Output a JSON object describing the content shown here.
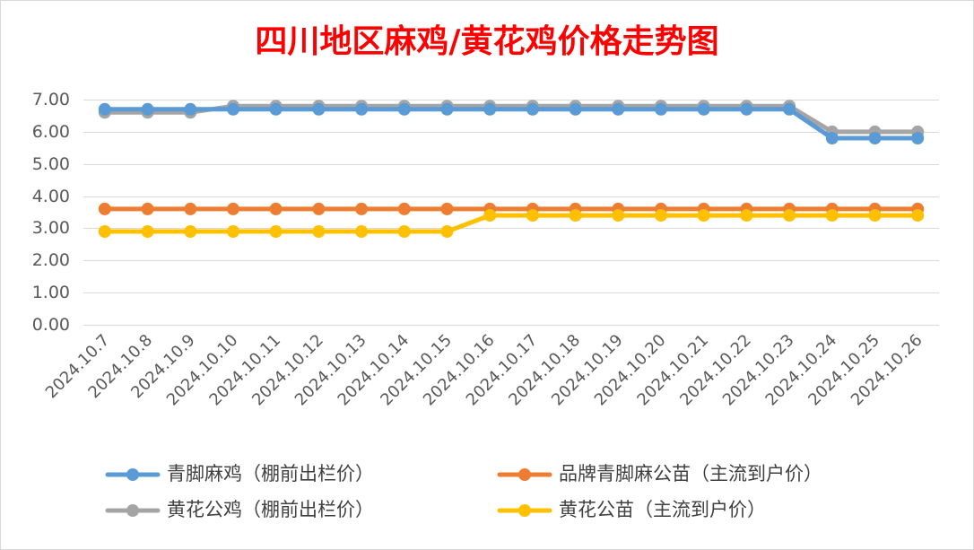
{
  "chart_data": {
    "type": "line",
    "title": "四川地区麻鸡/黄花鸡价格走势图",
    "xlabel": "",
    "ylabel": "",
    "categories": [
      "2024.10.7",
      "2024.10.8",
      "2024.10.9",
      "2024.10.10",
      "2024.10.11",
      "2024.10.12",
      "2024.10.13",
      "2024.10.14",
      "2024.10.15",
      "2024.10.16",
      "2024.10.17",
      "2024.10.18",
      "2024.10.19",
      "2024.10.20",
      "2024.10.21",
      "2024.10.22",
      "2024.10.23",
      "2024.10.24",
      "2024.10.25",
      "2024.10.26"
    ],
    "ylim": [
      0,
      7
    ],
    "yticks": [
      "0.00",
      "1.00",
      "2.00",
      "3.00",
      "4.00",
      "5.00",
      "6.00",
      "7.00"
    ],
    "grid": true,
    "legend_position": "bottom",
    "series": [
      {
        "name": "青脚麻鸡（棚前出栏价）",
        "color": "#5b9bd5",
        "values": [
          6.7,
          6.7,
          6.7,
          6.7,
          6.7,
          6.7,
          6.7,
          6.7,
          6.7,
          6.7,
          6.7,
          6.7,
          6.7,
          6.7,
          6.7,
          6.7,
          6.7,
          5.8,
          5.8,
          5.8
        ]
      },
      {
        "name": "品牌青脚麻公苗（主流到户价）",
        "color": "#ed7d31",
        "values": [
          3.6,
          3.6,
          3.6,
          3.6,
          3.6,
          3.6,
          3.6,
          3.6,
          3.6,
          3.6,
          3.6,
          3.6,
          3.6,
          3.6,
          3.6,
          3.6,
          3.6,
          3.6,
          3.6,
          3.6
        ]
      },
      {
        "name": "黄花公鸡（棚前出栏价）",
        "color": "#a5a5a5",
        "values": [
          6.6,
          6.6,
          6.6,
          6.8,
          6.8,
          6.8,
          6.8,
          6.8,
          6.8,
          6.8,
          6.8,
          6.8,
          6.8,
          6.8,
          6.8,
          6.8,
          6.8,
          6.0,
          6.0,
          6.0
        ]
      },
      {
        "name": "黄花公苗（主流到户价）",
        "color": "#ffc000",
        "values": [
          2.9,
          2.9,
          2.9,
          2.9,
          2.9,
          2.9,
          2.9,
          2.9,
          2.9,
          3.4,
          3.4,
          3.4,
          3.4,
          3.4,
          3.4,
          3.4,
          3.4,
          3.4,
          3.4,
          3.4
        ]
      }
    ]
  }
}
